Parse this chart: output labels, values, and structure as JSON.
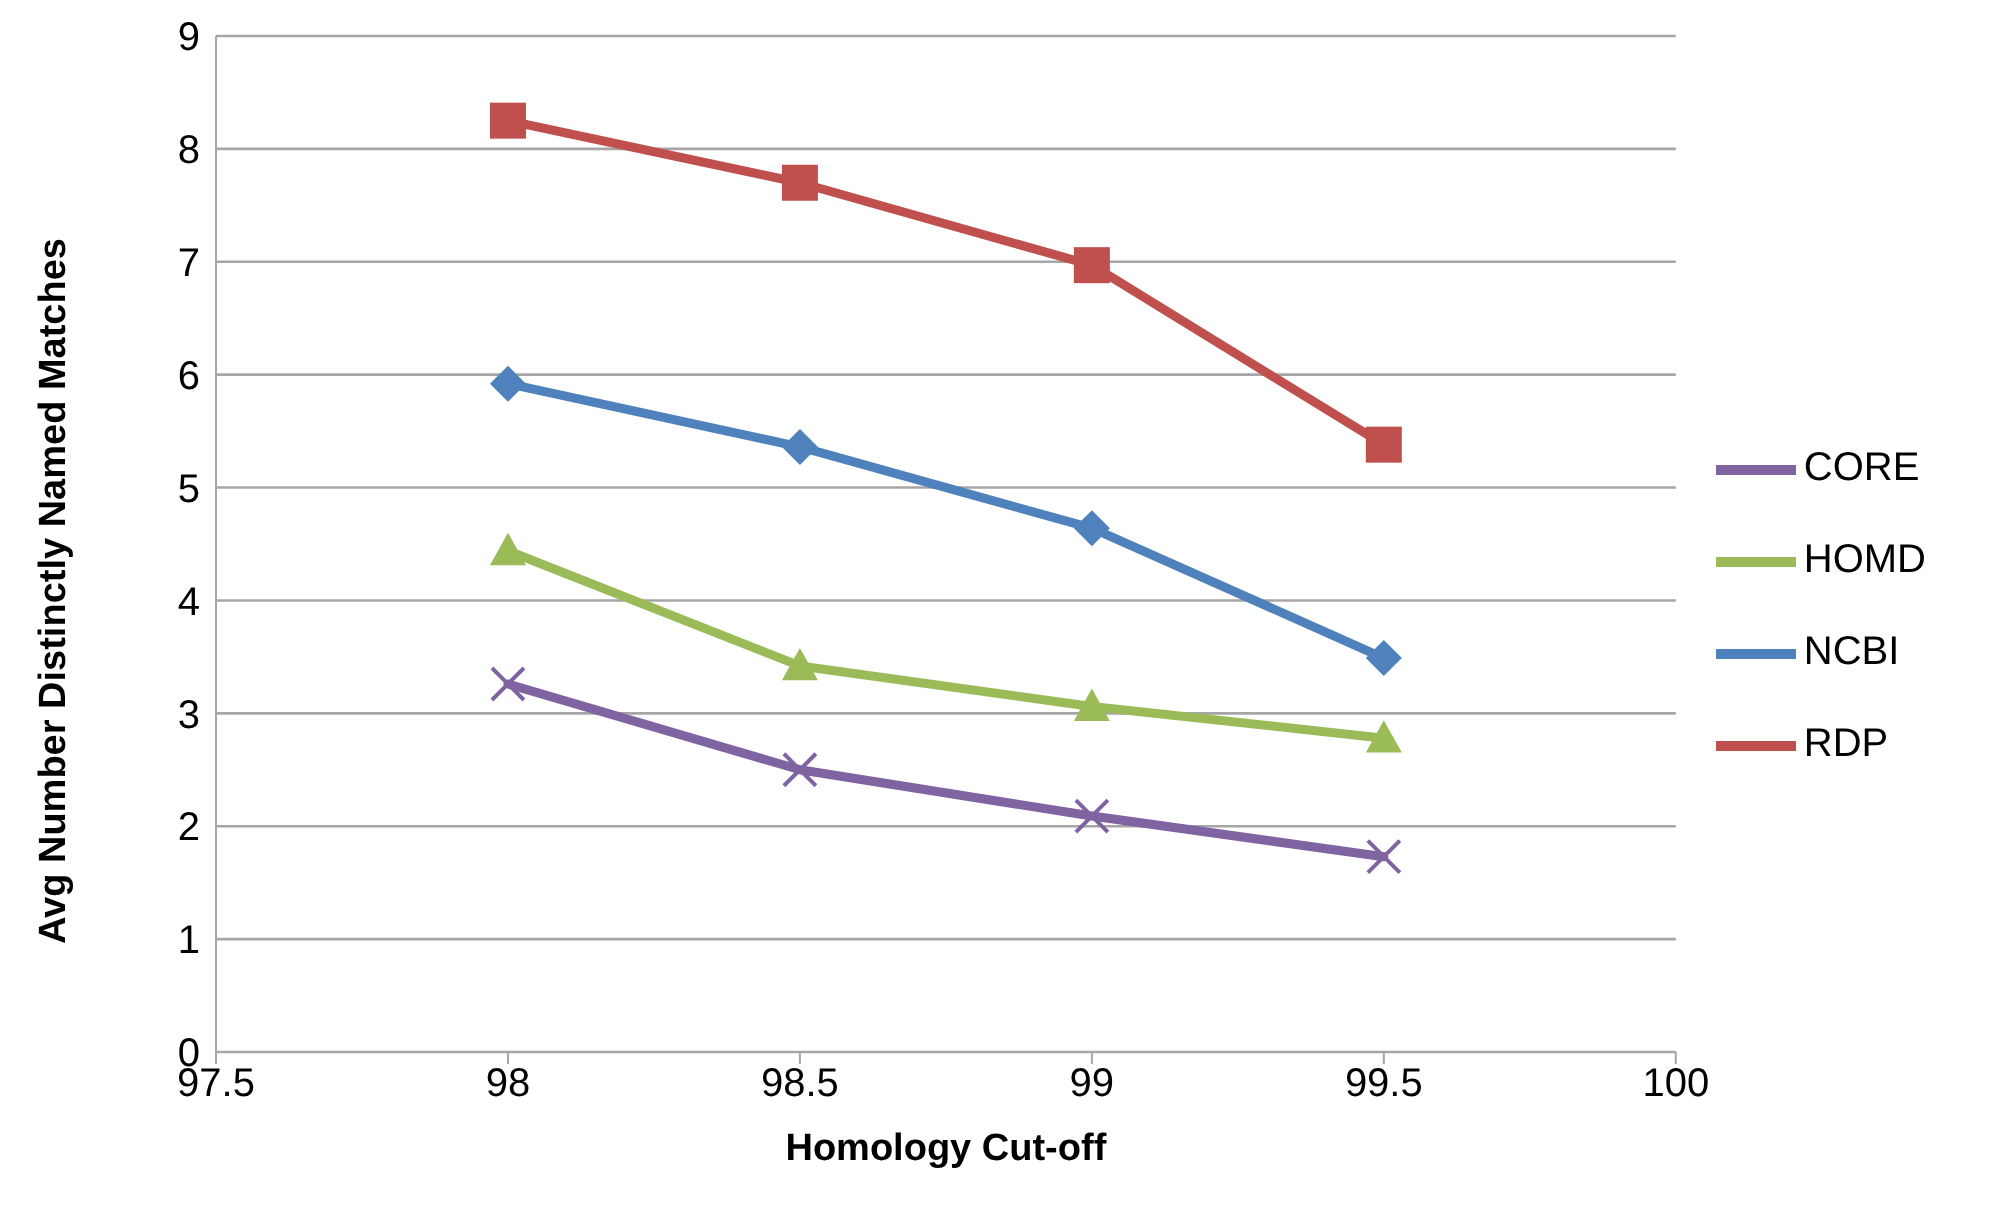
{
  "chart_data": {
    "type": "line",
    "xlabel": "Homology Cut-off",
    "ylabel": "Avg Number Distinctly Named Matches",
    "x": [
      98,
      98.5,
      99,
      99.5
    ],
    "xlim": [
      97.5,
      100
    ],
    "xticks": [
      97.5,
      98,
      98.5,
      99,
      99.5,
      100
    ],
    "ylim": [
      0,
      9
    ],
    "yticks": [
      0,
      1,
      2,
      3,
      4,
      5,
      6,
      7,
      8,
      9
    ],
    "grid": "y",
    "legend": "right",
    "line_style": "solid",
    "series": [
      {
        "name": "NCBI",
        "color": "#4f81bd",
        "marker": "diamond",
        "values": [
          5.92,
          5.36,
          4.64,
          3.49
        ]
      },
      {
        "name": "RDP",
        "color": "#c0504d",
        "marker": "square",
        "values": [
          8.25,
          7.7,
          6.97,
          5.38
        ]
      },
      {
        "name": "HOMD",
        "color": "#9bbb59",
        "marker": "triangle",
        "values": [
          4.44,
          3.42,
          3.06,
          2.78
        ]
      },
      {
        "name": "CORE",
        "color": "#8064a2",
        "marker": "cross",
        "values": [
          3.26,
          2.5,
          2.09,
          1.73
        ]
      }
    ]
  }
}
